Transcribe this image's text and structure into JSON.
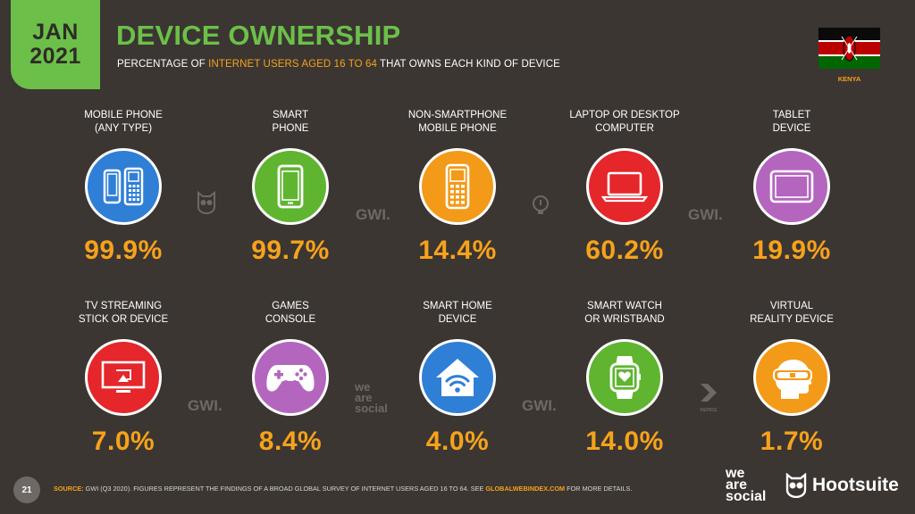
{
  "badge": {
    "month": "JAN",
    "year": "2021"
  },
  "title": "DEVICE OWNERSHIP",
  "subtitle": {
    "pre": "PERCENTAGE OF ",
    "highlight": "INTERNET USERS AGED 16 TO 64",
    "post": " THAT OWNS EACH KIND OF DEVICE"
  },
  "country": "KENYA",
  "colors": {
    "background": "#3b3632",
    "accent_green": "#6cc049",
    "accent_orange": "#f7a21b",
    "blue": "#2f7fd6",
    "green": "#5fb52f",
    "orange": "#f39a18",
    "red": "#e5262b",
    "purple": "#b466bf"
  },
  "devices": [
    {
      "line1": "MOBILE PHONE",
      "line2": "(ANY TYPE)",
      "value": "99.9%",
      "icon": "mobile-phones-icon",
      "color": "#2f7fd6"
    },
    {
      "line1": "SMART",
      "line2": "PHONE",
      "value": "99.7%",
      "icon": "smartphone-icon",
      "color": "#5fb52f"
    },
    {
      "line1": "NON-SMARTPHONE",
      "line2": "MOBILE PHONE",
      "value": "14.4%",
      "icon": "feature-phone-icon",
      "color": "#f39a18"
    },
    {
      "line1": "LAPTOP OR DESKTOP",
      "line2": "COMPUTER",
      "value": "60.2%",
      "icon": "laptop-icon",
      "color": "#e5262b"
    },
    {
      "line1": "TABLET",
      "line2": "DEVICE",
      "value": "19.9%",
      "icon": "tablet-icon",
      "color": "#b466bf"
    },
    {
      "line1": "TV STREAMING",
      "line2": "STICK OR DEVICE",
      "value": "7.0%",
      "icon": "tv-streaming-icon",
      "color": "#e5262b"
    },
    {
      "line1": "GAMES",
      "line2": "CONSOLE",
      "value": "8.4%",
      "icon": "gamepad-icon",
      "color": "#b466bf"
    },
    {
      "line1": "SMART HOME",
      "line2": "DEVICE",
      "value": "4.0%",
      "icon": "smart-home-icon",
      "color": "#2f7fd6"
    },
    {
      "line1": "SMART WATCH",
      "line2": "OR WRISTBAND",
      "value": "14.0%",
      "icon": "smartwatch-icon",
      "color": "#5fb52f"
    },
    {
      "line1": "VIRTUAL",
      "line2": "REALITY DEVICE",
      "value": "1.7%",
      "icon": "vr-headset-icon",
      "color": "#f39a18"
    }
  ],
  "watermarks": {
    "gwi": "GWI.",
    "we": "we",
    "are": "are",
    "social": "social",
    "kepios": "KEPIOS"
  },
  "footer": {
    "page": "21",
    "source_label": "SOURCE:",
    "source_text": " GWI (Q3 2020). FIGURES REPRESENT THE FINDINGS OF A BROAD GLOBAL SURVEY OF INTERNET USERS AGED 16 TO 64. SEE ",
    "source_link": "GLOBALWEBINDEX.COM",
    "source_end": " FOR MORE DETAILS.",
    "brand1_l1": "we",
    "brand1_l2": "are",
    "brand1_l3": "social",
    "brand2": "Hootsuite"
  }
}
